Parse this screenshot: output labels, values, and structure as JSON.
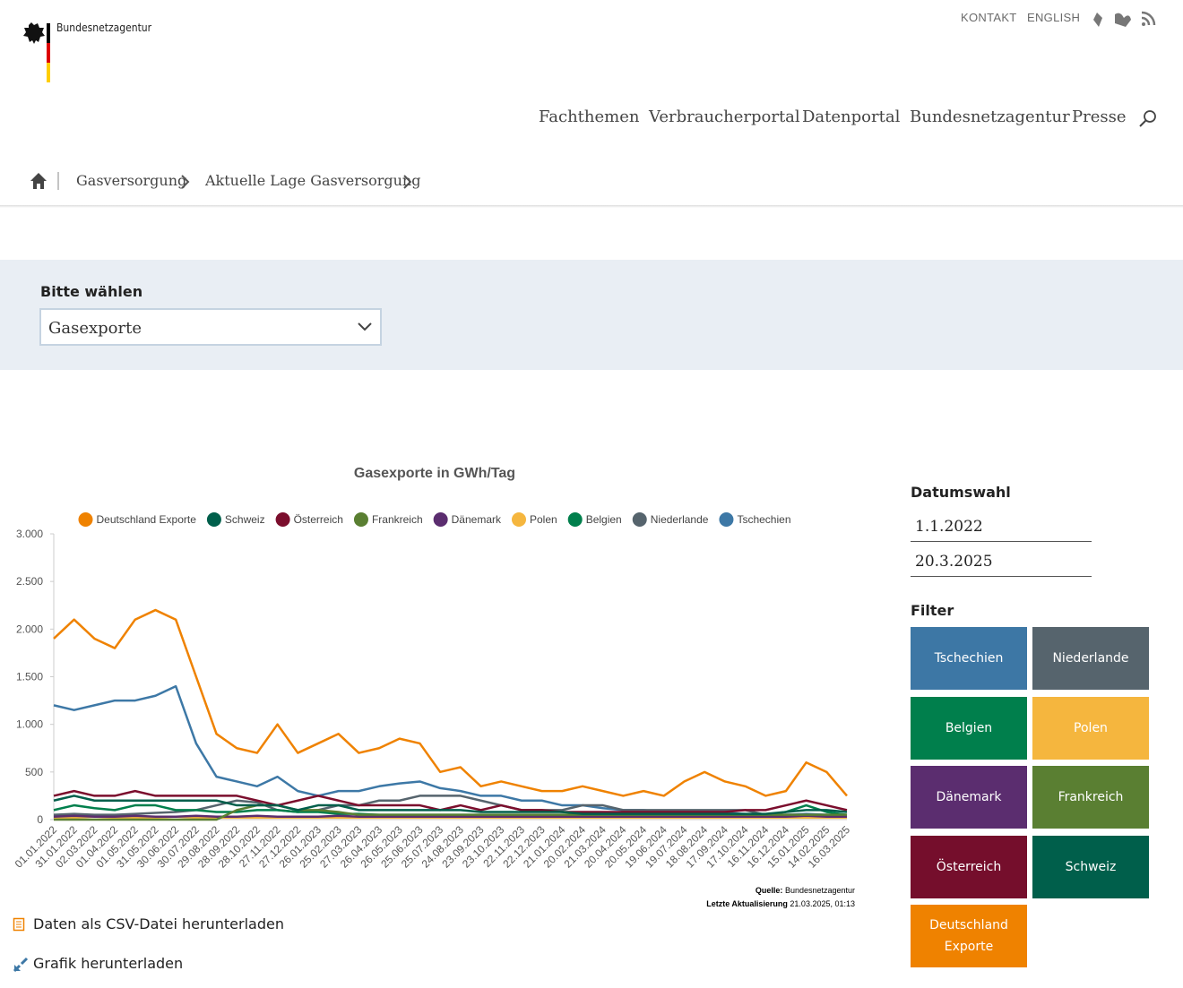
{
  "header": {
    "brand": "Bundesnetzagentur",
    "links": [
      "KONTAKT",
      "ENGLISH"
    ]
  },
  "navigation": [
    "Fachthemen",
    "Verbraucherportal",
    "Datenportal",
    "Bundesnetzagentur",
    "Presse"
  ],
  "breadcrumb": [
    "Gasversorgung",
    "Aktuelle Lage Gasversorgung"
  ],
  "selector": {
    "label": "Bitte wählen",
    "value": "Gasexporte"
  },
  "chart_data": {
    "type": "line",
    "title": "Gasexporte in GWh/Tag",
    "categories": [
      "01.01.2022",
      "31.01.2022",
      "02.03.2022",
      "01.04.2022",
      "01.05.2022",
      "31.05.2022",
      "30.06.2022",
      "30.07.2022",
      "29.08.2022",
      "28.09.2022",
      "28.10.2022",
      "27.11.2022",
      "27.12.2022",
      "26.01.2023",
      "25.02.2023",
      "27.03.2023",
      "26.04.2023",
      "26.05.2023",
      "25.06.2023",
      "25.07.2023",
      "24.08.2023",
      "23.09.2023",
      "23.10.2023",
      "22.11.2023",
      "22.12.2023",
      "21.01.2024",
      "20.02.2024",
      "21.03.2024",
      "20.04.2024",
      "20.05.2024",
      "19.06.2024",
      "19.07.2024",
      "18.08.2024",
      "17.09.2024",
      "17.10.2024",
      "16.11.2024",
      "16.12.2024",
      "15.01.2025",
      "14.02.2025",
      "16.03.2025"
    ],
    "ylim": [
      0,
      3000
    ],
    "yticks": [
      0,
      500,
      {
        "value": 1000,
        "label": "1.000"
      },
      {
        "value": 1500,
        "label": "1.500"
      },
      {
        "value": 2000,
        "label": "2.000"
      },
      {
        "value": 2500,
        "label": "2.500"
      },
      {
        "value": 3000,
        "label": "3.000"
      }
    ],
    "grid": false,
    "legend": "top",
    "series": [
      {
        "name": "Deutschland Exporte",
        "color": "#ef8200",
        "values": [
          1900,
          2100,
          1900,
          1800,
          2100,
          2200,
          2100,
          1500,
          900,
          750,
          700,
          1000,
          700,
          800,
          900,
          700,
          750,
          850,
          800,
          500,
          550,
          350,
          400,
          350,
          300,
          300,
          350,
          300,
          250,
          300,
          250,
          400,
          500,
          400,
          350,
          250,
          300,
          600,
          500,
          250
        ]
      },
      {
        "name": "Schweiz",
        "color": "#005f4b",
        "values": [
          200,
          250,
          200,
          200,
          200,
          200,
          200,
          200,
          200,
          150,
          150,
          150,
          100,
          150,
          150,
          100,
          100,
          100,
          100,
          100,
          100,
          80,
          80,
          80,
          80,
          80,
          60,
          60,
          60,
          60,
          60,
          60,
          60,
          60,
          60,
          60,
          80,
          100,
          100,
          80
        ]
      },
      {
        "name": "Österreich",
        "color": "#7b0e2d",
        "values": [
          250,
          300,
          250,
          250,
          300,
          250,
          250,
          250,
          250,
          250,
          200,
          150,
          200,
          250,
          200,
          150,
          150,
          150,
          150,
          100,
          150,
          100,
          150,
          100,
          100,
          80,
          80,
          80,
          80,
          80,
          80,
          80,
          80,
          80,
          100,
          100,
          150,
          200,
          150,
          100
        ]
      },
      {
        "name": "Frankreich",
        "color": "#5a7f32",
        "values": [
          0,
          0,
          0,
          0,
          0,
          0,
          0,
          0,
          0,
          100,
          150,
          150,
          100,
          100,
          80,
          50,
          50,
          50,
          50,
          50,
          50,
          50,
          50,
          50,
          50,
          50,
          50,
          50,
          50,
          50,
          50,
          50,
          50,
          50,
          50,
          50,
          50,
          50,
          50,
          50
        ]
      },
      {
        "name": "Dänemark",
        "color": "#5b2d6f",
        "values": [
          30,
          40,
          30,
          30,
          40,
          30,
          30,
          40,
          30,
          30,
          40,
          30,
          30,
          30,
          40,
          30,
          30,
          30,
          30,
          30,
          30,
          30,
          30,
          30,
          30,
          30,
          30,
          30,
          30,
          30,
          30,
          30,
          30,
          30,
          30,
          30,
          30,
          40,
          30,
          30
        ]
      },
      {
        "name": "Polen",
        "color": "#f5b63e",
        "values": [
          20,
          20,
          30,
          20,
          20,
          20,
          30,
          20,
          20,
          20,
          20,
          20,
          20,
          20,
          20,
          20,
          20,
          20,
          20,
          20,
          20,
          20,
          20,
          20,
          20,
          20,
          20,
          20,
          20,
          20,
          20,
          20,
          20,
          20,
          20,
          20,
          20,
          20,
          20,
          20
        ]
      },
      {
        "name": "Belgien",
        "color": "#007f4c",
        "values": [
          100,
          150,
          120,
          100,
          150,
          150,
          100,
          100,
          80,
          80,
          100,
          100,
          80,
          80,
          60,
          60,
          50,
          50,
          50,
          50,
          50,
          50,
          50,
          50,
          50,
          50,
          50,
          50,
          50,
          50,
          50,
          50,
          50,
          50,
          50,
          50,
          80,
          150,
          80,
          50
        ]
      },
      {
        "name": "Niederlande",
        "color": "#56646d",
        "values": [
          50,
          60,
          50,
          50,
          60,
          70,
          80,
          100,
          150,
          200,
          180,
          100,
          80,
          100,
          150,
          150,
          200,
          200,
          250,
          250,
          250,
          200,
          150,
          100,
          100,
          100,
          150,
          150,
          100,
          100,
          100,
          100,
          100,
          100,
          100,
          50,
          50,
          50,
          50,
          50
        ]
      },
      {
        "name": "Tschechien",
        "color": "#3d78a6",
        "values": [
          1200,
          1150,
          1200,
          1250,
          1250,
          1300,
          1400,
          800,
          450,
          400,
          350,
          450,
          300,
          250,
          300,
          300,
          350,
          380,
          400,
          330,
          300,
          250,
          250,
          200,
          200,
          150,
          150,
          120,
          100,
          100,
          80,
          80,
          70,
          70,
          60,
          50,
          50,
          60,
          50,
          40
        ]
      }
    ]
  },
  "source": {
    "label": "Quelle:",
    "value": "Bundesnetzagentur",
    "update_label": "Letzte Aktualisierung",
    "update_value": "21.03.2025, 01:13"
  },
  "downloads": [
    "Daten als CSV-Datei herunterladen",
    "Grafik herunterladen"
  ],
  "sidebar": {
    "date_title": "Datumswahl",
    "date_from": "1.1.2022",
    "date_to": "20.3.2025",
    "filter_title": "Filter",
    "filters": [
      {
        "label": "Tschechien",
        "color": "#3d77a5"
      },
      {
        "label": "Niederlande",
        "color": "#56646d"
      },
      {
        "label": "Belgien",
        "color": "#007f4c"
      },
      {
        "label": "Polen",
        "color": "#f5b63e"
      },
      {
        "label": "Dänemark",
        "color": "#5b2d6f"
      },
      {
        "label": "Frankreich",
        "color": "#5a7f32"
      },
      {
        "label": "Österreich",
        "color": "#750e2c"
      },
      {
        "label": "Schweiz",
        "color": "#005f4b"
      },
      {
        "label": "Deutschland Exporte",
        "color": "#ef8200"
      }
    ]
  }
}
